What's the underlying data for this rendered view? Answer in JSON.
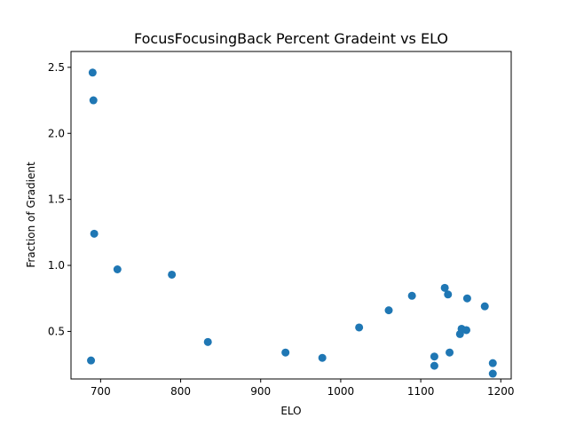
{
  "chart_data": {
    "type": "scatter",
    "title": "FocusFocusingBack Percent Gradeint vs ELO",
    "xlabel": "ELO",
    "ylabel": "Fraction of Gradient",
    "xlim": [
      663,
      1213
    ],
    "ylim": [
      0.14,
      2.62
    ],
    "xticks": [
      700,
      800,
      900,
      1000,
      1100,
      1200
    ],
    "yticks": [
      0.5,
      1.0,
      1.5,
      2.0,
      2.5
    ],
    "xtick_labels": [
      "700",
      "800",
      "900",
      "1000",
      "1100",
      "1200"
    ],
    "ytick_labels": [
      "0.5",
      "1.0",
      "1.5",
      "2.0",
      "2.5"
    ],
    "grid": false,
    "marker_color": "#1f77b4",
    "series": [
      {
        "x": [
          690,
          691,
          692,
          688,
          721,
          789,
          834,
          931,
          977,
          1023,
          1060,
          1089,
          1117,
          1117,
          1130,
          1134,
          1136,
          1149,
          1151,
          1157,
          1158,
          1180,
          1190,
          1190
        ],
        "y": [
          2.46,
          2.25,
          1.24,
          0.28,
          0.97,
          0.93,
          0.42,
          0.34,
          0.3,
          0.53,
          0.66,
          0.77,
          0.31,
          0.24,
          0.83,
          0.78,
          0.34,
          0.48,
          0.52,
          0.51,
          0.75,
          0.69,
          0.26,
          0.18
        ]
      }
    ]
  }
}
